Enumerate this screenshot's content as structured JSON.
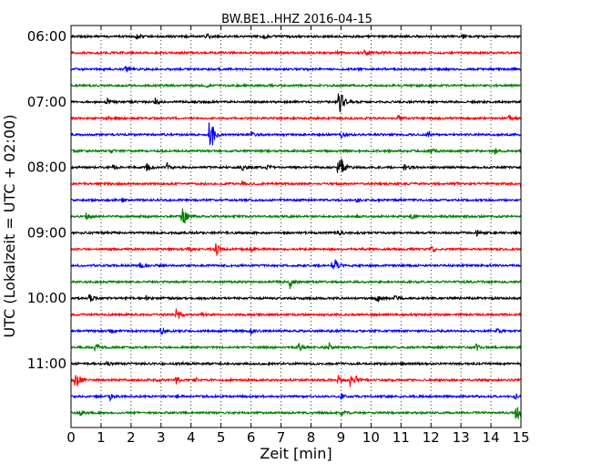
{
  "chart_data": {
    "type": "line",
    "title": "BW.BE1..HHZ 2016-04-15",
    "xlabel": "Zeit  [min]",
    "ylabel": "UTC (Lokalzeit = UTC + 02:00)",
    "xlim": [
      0,
      15
    ],
    "x_ticks": [
      "0",
      "1",
      "2",
      "3",
      "4",
      "5",
      "6",
      "7",
      "8",
      "9",
      "10",
      "11",
      "12",
      "13",
      "14",
      "15"
    ],
    "y_ticks": [
      {
        "label": "06:00",
        "line": 0
      },
      {
        "label": "07:00",
        "line": 4
      },
      {
        "label": "08:00",
        "line": 8
      },
      {
        "label": "09:00",
        "line": 12
      },
      {
        "label": "10:00",
        "line": 16
      },
      {
        "label": "11:00",
        "line": 20
      }
    ],
    "minutes_per_line": 15,
    "grid": "vertical dotted",
    "colors": [
      "#000000",
      "#ff0000",
      "#0000ff",
      "#008000"
    ],
    "lines": [
      {
        "start": "06:00",
        "events": [
          [
            2.2,
            0.25
          ],
          [
            4.5,
            0.3
          ],
          [
            6.4,
            0.2
          ],
          [
            13.0,
            0.3
          ]
        ]
      },
      {
        "start": "06:15",
        "events": [
          [
            8.9,
            0.2
          ],
          [
            9.8,
            0.3
          ],
          [
            10.4,
            0.2
          ]
        ]
      },
      {
        "start": "06:30",
        "events": [
          [
            1.8,
            0.35
          ]
        ]
      },
      {
        "start": "06:45",
        "events": [
          [
            4.5,
            0.15
          ]
        ]
      },
      {
        "start": "07:00",
        "events": [
          [
            1.2,
            0.3
          ],
          [
            2.8,
            0.3
          ],
          [
            8.9,
            1.0
          ],
          [
            9.0,
            0.6
          ]
        ]
      },
      {
        "start": "07:15",
        "events": [
          [
            1.2,
            0.2
          ],
          [
            10.9,
            0.2
          ],
          [
            14.6,
            0.25
          ]
        ]
      },
      {
        "start": "07:30",
        "events": [
          [
            4.6,
            1.3
          ],
          [
            4.7,
            0.6
          ],
          [
            6.0,
            0.2
          ],
          [
            9.0,
            0.35
          ],
          [
            11.9,
            0.25
          ]
        ]
      },
      {
        "start": "07:45",
        "events": [
          [
            1.3,
            0.3
          ],
          [
            12.0,
            0.3
          ],
          [
            14.1,
            0.3
          ]
        ]
      },
      {
        "start": "08:00",
        "events": [
          [
            1.4,
            0.2
          ],
          [
            2.5,
            0.4
          ],
          [
            3.2,
            0.35
          ],
          [
            5.7,
            0.3
          ],
          [
            6.5,
            0.3
          ],
          [
            8.9,
            1.0
          ],
          [
            9.0,
            0.5
          ],
          [
            11.1,
            0.35
          ]
        ]
      },
      {
        "start": "08:15",
        "events": [
          [
            5.7,
            0.25
          ],
          [
            12.7,
            0.2
          ],
          [
            15.0,
            0.4
          ]
        ]
      },
      {
        "start": "08:30",
        "events": [
          [
            1.7,
            0.15
          ],
          [
            9.5,
            0.15
          ]
        ]
      },
      {
        "start": "08:45",
        "events": [
          [
            0.5,
            0.3
          ],
          [
            3.7,
            0.8
          ],
          [
            3.8,
            0.4
          ],
          [
            11.3,
            0.25
          ]
        ]
      },
      {
        "start": "09:00",
        "events": [
          [
            8.9,
            0.25
          ],
          [
            13.5,
            0.3
          ]
        ]
      },
      {
        "start": "09:15",
        "events": [
          [
            3.9,
            0.2
          ],
          [
            4.8,
            0.9
          ],
          [
            6.0,
            0.2
          ],
          [
            12.0,
            0.3
          ]
        ]
      },
      {
        "start": "09:30",
        "events": [
          [
            2.3,
            0.2
          ],
          [
            8.7,
            0.55
          ],
          [
            8.8,
            0.35
          ]
        ]
      },
      {
        "start": "09:45",
        "events": [
          [
            7.3,
            0.5
          ]
        ]
      },
      {
        "start": "10:00",
        "events": [
          [
            0.6,
            0.35
          ],
          [
            2.5,
            0.2
          ],
          [
            10.2,
            0.4
          ],
          [
            10.8,
            0.2
          ]
        ]
      },
      {
        "start": "10:15",
        "events": [
          [
            3.5,
            0.45
          ],
          [
            3.6,
            0.2
          ],
          [
            4.3,
            0.15
          ]
        ]
      },
      {
        "start": "10:30",
        "events": [
          [
            1.3,
            0.2
          ],
          [
            3.0,
            0.35
          ],
          [
            6.0,
            0.35
          ],
          [
            14.2,
            0.25
          ]
        ]
      },
      {
        "start": "10:45",
        "events": [
          [
            0.8,
            0.4
          ],
          [
            7.6,
            0.35
          ],
          [
            8.6,
            0.35
          ],
          [
            13.5,
            0.3
          ]
        ]
      },
      {
        "start": "11:00",
        "events": [
          [
            1.2,
            0.15
          ],
          [
            3.6,
            0.15
          ],
          [
            15.0,
            0.3
          ]
        ]
      },
      {
        "start": "11:15",
        "events": [
          [
            0.1,
            0.65
          ],
          [
            0.2,
            0.45
          ],
          [
            2.9,
            0.25
          ],
          [
            3.5,
            0.3
          ],
          [
            4.1,
            0.2
          ],
          [
            8.9,
            0.4
          ],
          [
            9.3,
            0.5
          ],
          [
            9.5,
            0.3
          ]
        ]
      },
      {
        "start": "11:30",
        "events": [
          [
            1.3,
            0.25
          ],
          [
            9.0,
            0.25
          ],
          [
            14.8,
            0.3
          ]
        ]
      },
      {
        "start": "11:45",
        "events": [
          [
            0.3,
            0.25
          ],
          [
            9.0,
            0.2
          ],
          [
            14.8,
            0.6
          ],
          [
            14.9,
            0.4
          ]
        ]
      }
    ]
  }
}
